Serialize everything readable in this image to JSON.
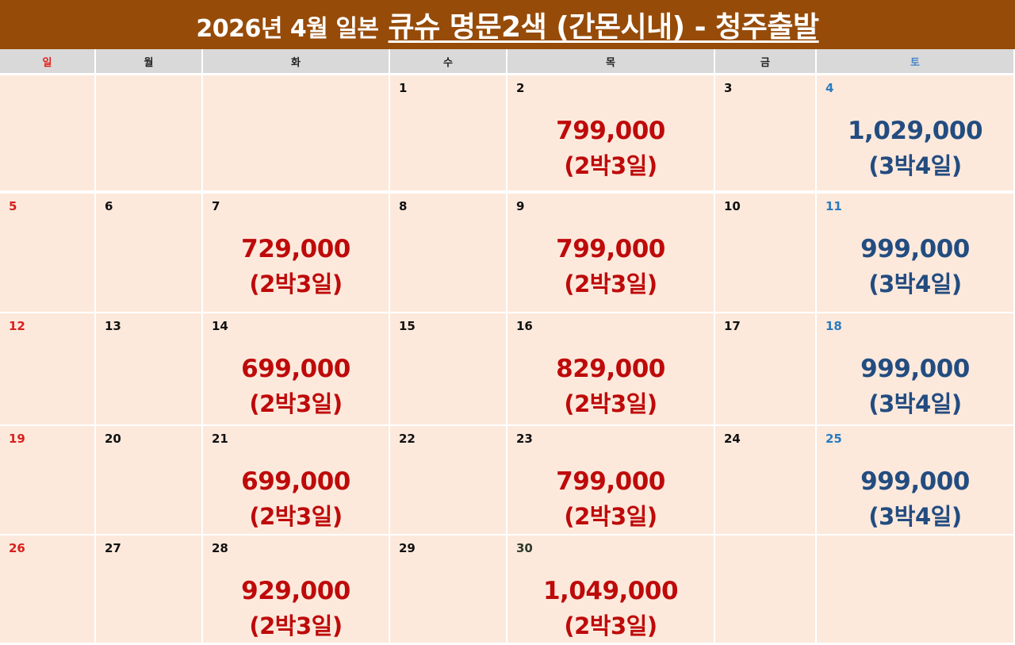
{
  "title": {
    "prefix": "2026년 4월 일본",
    "main": "큐슈 명문2색 (간몬시내) - 청주출발"
  },
  "colors": {
    "title_bg": "#964B08",
    "header_bg": "#D9D9D9",
    "cell_bg": "#FCE9DC",
    "sunday": "#D8201C",
    "saturday": "#2B7BBE",
    "price_weekday": "#BE0A0A",
    "price_saturday": "#234C80"
  },
  "weekdays": [
    "일",
    "월",
    "화",
    "수",
    "목",
    "금",
    "토"
  ],
  "weeks": [
    [
      {
        "day": "",
        "price": "",
        "duration": ""
      },
      {
        "day": "",
        "price": "",
        "duration": ""
      },
      {
        "day": "",
        "price": "",
        "duration": ""
      },
      {
        "day": "1",
        "price": "",
        "duration": ""
      },
      {
        "day": "2",
        "price": "799,000",
        "duration": "(2박3일)"
      },
      {
        "day": "3",
        "price": "",
        "duration": ""
      },
      {
        "day": "4",
        "price": "1,029,000",
        "duration": "(3박4일)"
      }
    ],
    [
      {
        "day": "5",
        "price": "",
        "duration": ""
      },
      {
        "day": "6",
        "price": "",
        "duration": ""
      },
      {
        "day": "7",
        "price": "729,000",
        "duration": "(2박3일)"
      },
      {
        "day": "8",
        "price": "",
        "duration": ""
      },
      {
        "day": "9",
        "price": "799,000",
        "duration": "(2박3일)"
      },
      {
        "day": "10",
        "price": "",
        "duration": ""
      },
      {
        "day": "11",
        "price": "999,000",
        "duration": "(3박4일)"
      }
    ],
    [
      {
        "day": "12",
        "price": "",
        "duration": ""
      },
      {
        "day": "13",
        "price": "",
        "duration": ""
      },
      {
        "day": "14",
        "price": "699,000",
        "duration": "(2박3일)"
      },
      {
        "day": "15",
        "price": "",
        "duration": ""
      },
      {
        "day": "16",
        "price": "829,000",
        "duration": "(2박3일)"
      },
      {
        "day": "17",
        "price": "",
        "duration": ""
      },
      {
        "day": "18",
        "price": "999,000",
        "duration": "(3박4일)"
      }
    ],
    [
      {
        "day": "19",
        "price": "",
        "duration": ""
      },
      {
        "day": "20",
        "price": "",
        "duration": ""
      },
      {
        "day": "21",
        "price": "699,000",
        "duration": "(2박3일)"
      },
      {
        "day": "22",
        "price": "",
        "duration": ""
      },
      {
        "day": "23",
        "price": "799,000",
        "duration": "(2박3일)"
      },
      {
        "day": "24",
        "price": "",
        "duration": ""
      },
      {
        "day": "25",
        "price": "999,000",
        "duration": "(3박4일)"
      }
    ],
    [
      {
        "day": "26",
        "price": "",
        "duration": ""
      },
      {
        "day": "27",
        "price": "",
        "duration": ""
      },
      {
        "day": "28",
        "price": "929,000",
        "duration": "(2박3일)"
      },
      {
        "day": "29",
        "price": "",
        "duration": ""
      },
      {
        "day": "30",
        "price": "1,049,000",
        "duration": "(2박3일)"
      },
      {
        "day": "",
        "price": "",
        "duration": ""
      },
      {
        "day": "",
        "price": "",
        "duration": ""
      }
    ]
  ]
}
